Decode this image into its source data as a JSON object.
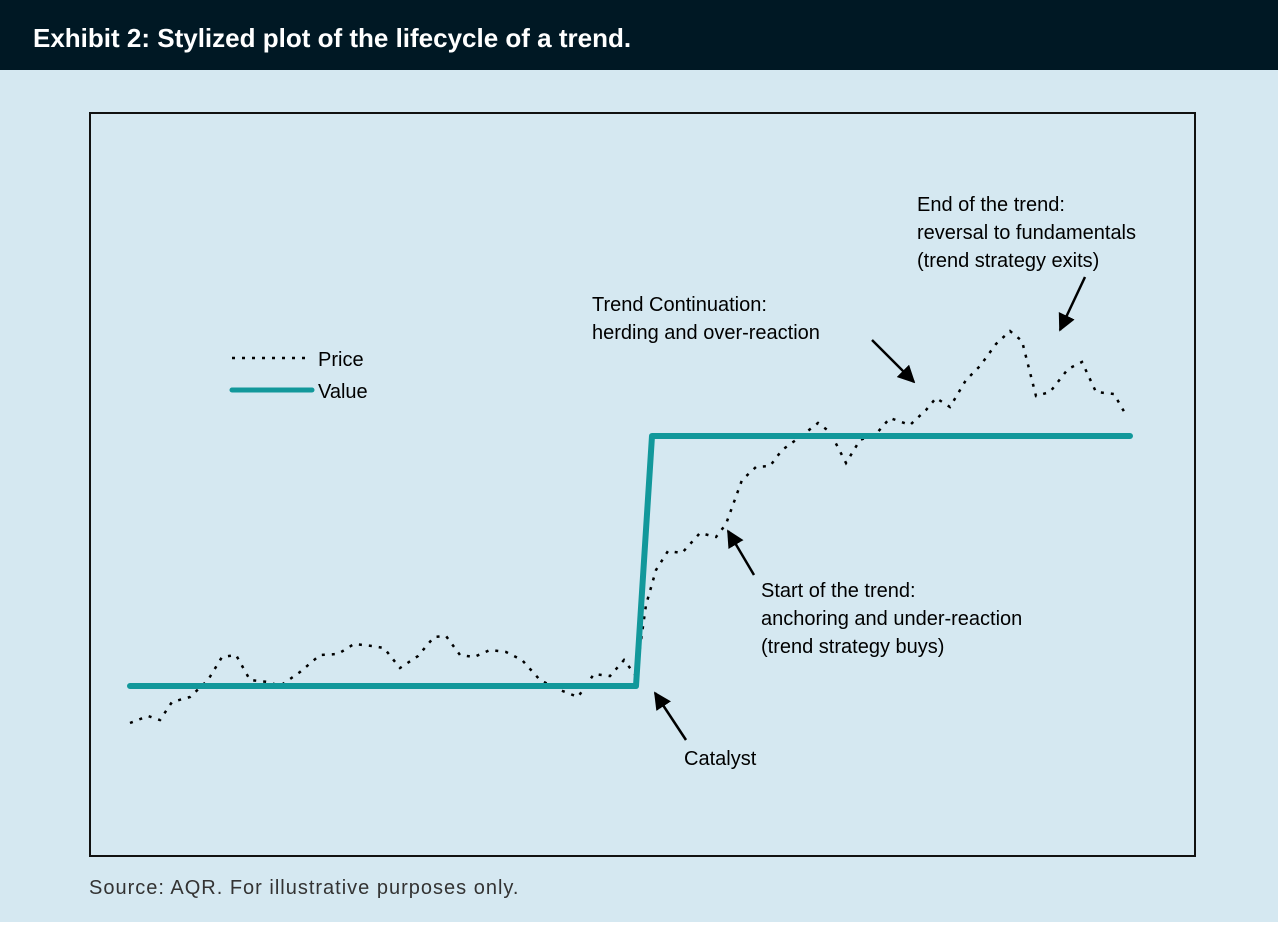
{
  "chart_data": {
    "type": "line",
    "title": "Exhibit 2: Stylized plot of the lifecycle of a trend.",
    "source": "Source: AQR. For illustrative purposes only.",
    "xlim": [
      0,
      1105
    ],
    "ylim": [
      0,
      743
    ],
    "legend": "upper left",
    "series": [
      {
        "name": "Price",
        "color": "#000000",
        "style": "dotted",
        "x": [
          40,
          58,
          70,
          82,
          100,
          118,
          132,
          146,
          160,
          178,
          190,
          210,
          230,
          248,
          264,
          282,
          294,
          310,
          328,
          344,
          356,
          370,
          384,
          400,
          416,
          432,
          450,
          470,
          488,
          504,
          520,
          534,
          546,
          556,
          566,
          578,
          592,
          610,
          626,
          636,
          652,
          666,
          680,
          692,
          710,
          728,
          740,
          756,
          770,
          786,
          800,
          820,
          836,
          846,
          860,
          876,
          890,
          906,
          920,
          932,
          946,
          960,
          978,
          992,
          1006,
          1024,
          1036
        ],
        "values": [
          133,
          140,
          136,
          154,
          159,
          176,
          199,
          201,
          176,
          174,
          170,
          184,
          201,
          202,
          212,
          210,
          208,
          188,
          200,
          219,
          220,
          201,
          199,
          206,
          204,
          196,
          176,
          166,
          159,
          182,
          180,
          196,
          180,
          251,
          286,
          305,
          303,
          323,
          319,
          332,
          376,
          389,
          390,
          406,
          419,
          433,
          424,
          393,
          416,
          422,
          438,
          431,
          446,
          458,
          449,
          476,
          490,
          512,
          525,
          515,
          460,
          464,
          487,
          494,
          464,
          462,
          441
        ]
      },
      {
        "name": "Value",
        "color": "#12989b",
        "style": "solid",
        "x": [
          40,
          546,
          562,
          1040
        ],
        "values": [
          170,
          170,
          420,
          420
        ]
      }
    ],
    "annotations": [
      {
        "lines": [
          "End of the trend:",
          "reversal to fundamentals",
          "(trend strategy exits)"
        ]
      },
      {
        "lines": [
          "Trend Continuation:",
          "herding and over-reaction"
        ]
      },
      {
        "lines": [
          "Start of the trend:",
          "anchoring and under-reaction",
          "(trend strategy buys)"
        ]
      },
      {
        "lines": [
          "Catalyst"
        ]
      }
    ]
  }
}
